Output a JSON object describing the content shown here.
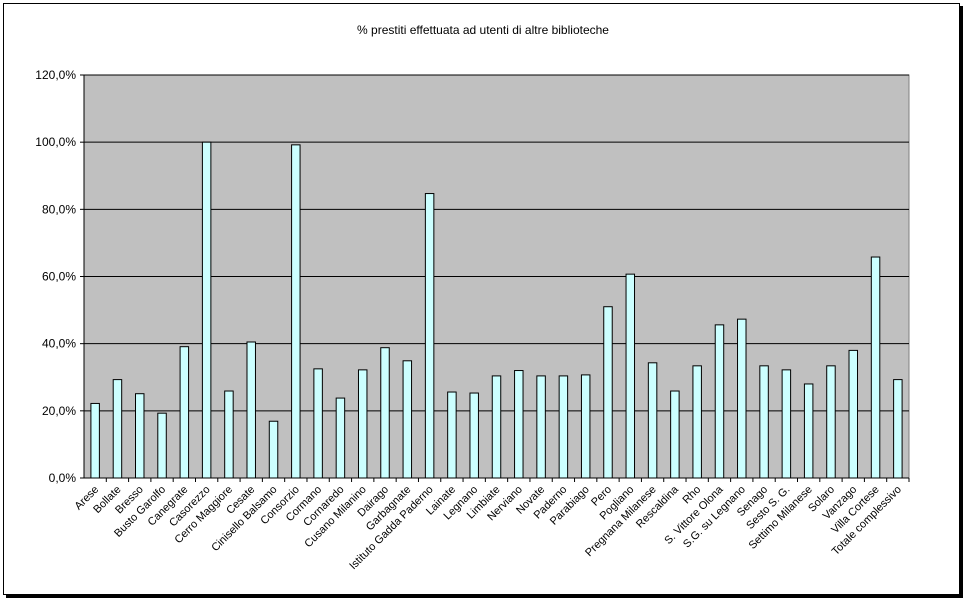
{
  "chart_data": {
    "type": "bar",
    "title": "% prestiti effettuata ad utenti di altre biblioteche",
    "categories": [
      "Arese",
      "Bollate",
      "Bresso",
      "Busto Garolfo",
      "Canegrate",
      "Casorezzo",
      "Cerro Maggiore",
      "Cesate",
      "Cinisello Balsamo",
      "Consorzio",
      "Cormano",
      "Cornaredo",
      "Cusano Milanino",
      "Dairago",
      "Garbagnate",
      "Istituto Gadda Paderno",
      "Lainate",
      "Legnano",
      "Limbiate",
      "Nerviano",
      "Novate",
      "Paderno",
      "Parabiago",
      "Pero",
      "Pogliano",
      "Pregnana Milanese",
      "Rescaldina",
      "Rho",
      "S. Vittore Olona",
      "S.G. su Legnano",
      "Senago",
      "Sesto S. G.",
      "Settimo Milanese",
      "Solaro",
      "Vanzago",
      "Villa Cortese",
      "Totale complessivo"
    ],
    "values": [
      22.2,
      29.3,
      25.1,
      19.3,
      39.1,
      100.0,
      25.9,
      40.5,
      16.9,
      99.2,
      32.5,
      23.8,
      32.2,
      38.8,
      34.9,
      84.7,
      25.6,
      25.3,
      30.4,
      32.0,
      30.4,
      30.4,
      30.7,
      51.0,
      60.7,
      34.3,
      25.9,
      33.4,
      45.6,
      47.3,
      33.4,
      32.2,
      28.0,
      33.4,
      38.0,
      65.8,
      29.3
    ],
    "ylim": [
      0,
      120
    ],
    "yticks": [
      0,
      20,
      40,
      60,
      80,
      100,
      120
    ],
    "ytick_labels": [
      "0,0%",
      "20,0%",
      "40,0%",
      "60,0%",
      "80,0%",
      "100,0%",
      "120,0%"
    ],
    "grid": true,
    "legend": "none",
    "colors": {
      "plot_background": "#c0c0c0",
      "bar_fill": "#ccffff",
      "bar_stroke": "#000000",
      "grid": "#000000"
    }
  }
}
